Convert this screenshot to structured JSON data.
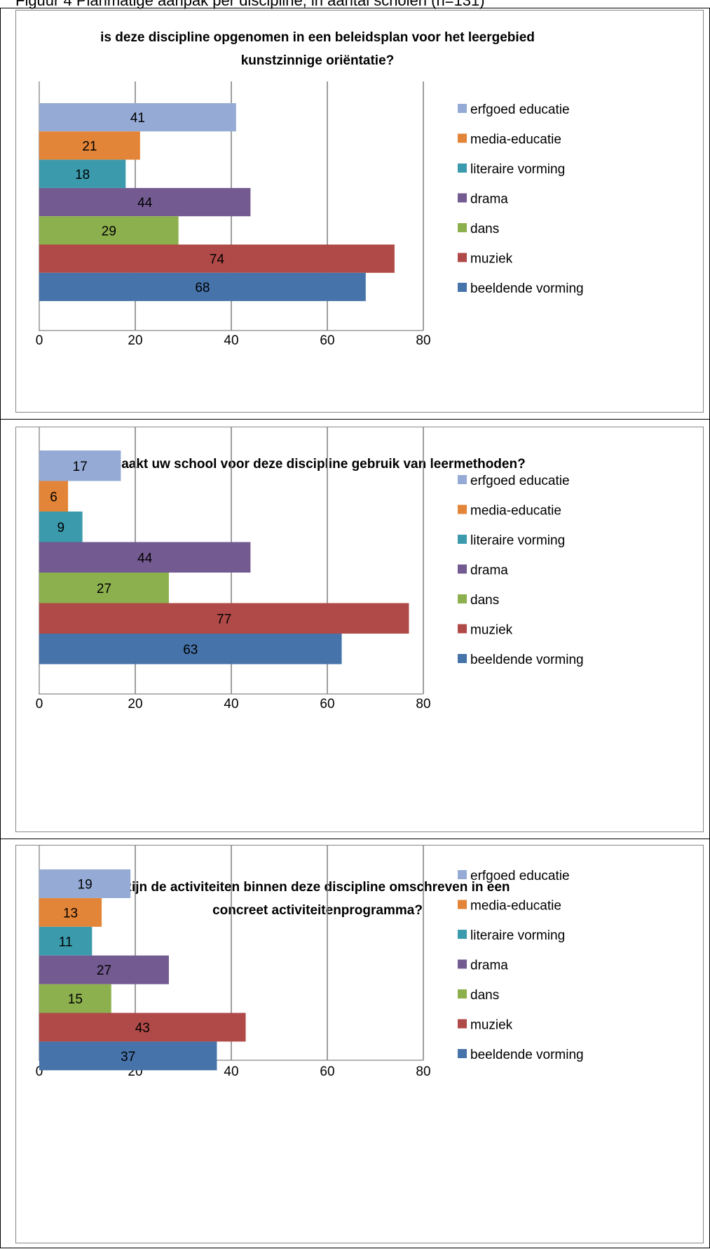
{
  "figure": {
    "caption": "Figuur 4 Planmatige aanpak per discipline, in aantal scholen (n=131)"
  },
  "legend": [
    {
      "label": "erfgoed educatie",
      "color": "#95ABD5"
    },
    {
      "label": "media-educatie",
      "color": "#E38538"
    },
    {
      "label": "literaire vorming",
      "color": "#3B9BAD"
    },
    {
      "label": "drama",
      "color": "#735A91"
    },
    {
      "label": "dans",
      "color": "#8DB04F"
    },
    {
      "label": "muziek",
      "color": "#B04A48"
    },
    {
      "label": "beeldende vorming",
      "color": "#4673AA"
    }
  ],
  "chart_data": [
    {
      "type": "bar",
      "orientation": "horizontal",
      "title_lines": [
        "is deze discipline opgenomen in een beleidsplan voor het leergebied",
        "kunstzinnige oriëntatie?"
      ],
      "categories": [
        "erfgoed educatie",
        "media-educatie",
        "literaire vorming",
        "drama",
        "dans",
        "muziek",
        "beeldende vorming"
      ],
      "values": [
        41,
        21,
        18,
        44,
        29,
        74,
        68
      ],
      "xlim": [
        0,
        80
      ],
      "xticks": [
        "0",
        "20",
        "40",
        "60",
        "80"
      ],
      "grid": true,
      "legend_position": "right"
    },
    {
      "type": "bar",
      "orientation": "horizontal",
      "title_lines": [
        "maakt uw school voor deze discipline gebruik van leermethoden?"
      ],
      "categories": [
        "erfgoed educatie",
        "media-educatie",
        "literaire vorming",
        "drama",
        "dans",
        "muziek",
        "beeldende vorming"
      ],
      "values": [
        17,
        6,
        9,
        44,
        27,
        77,
        63
      ],
      "xlim": [
        0,
        80
      ],
      "xticks": [
        "0",
        "20",
        "40",
        "60",
        "80"
      ],
      "grid": true,
      "legend_position": "right"
    },
    {
      "type": "bar",
      "orientation": "horizontal",
      "title_lines": [
        "zijn de activiteiten binnen deze discipline omschreven in een",
        "concreet activiteitenprogramma?"
      ],
      "categories": [
        "erfgoed educatie",
        "media-educatie",
        "literaire vorming",
        "drama",
        "dans",
        "muziek",
        "beeldende vorming"
      ],
      "values": [
        19,
        13,
        11,
        27,
        15,
        43,
        37
      ],
      "xlim": [
        0,
        80
      ],
      "xticks": [
        "0",
        "20",
        "40",
        "60",
        "80"
      ],
      "grid": true,
      "legend_position": "right"
    }
  ]
}
